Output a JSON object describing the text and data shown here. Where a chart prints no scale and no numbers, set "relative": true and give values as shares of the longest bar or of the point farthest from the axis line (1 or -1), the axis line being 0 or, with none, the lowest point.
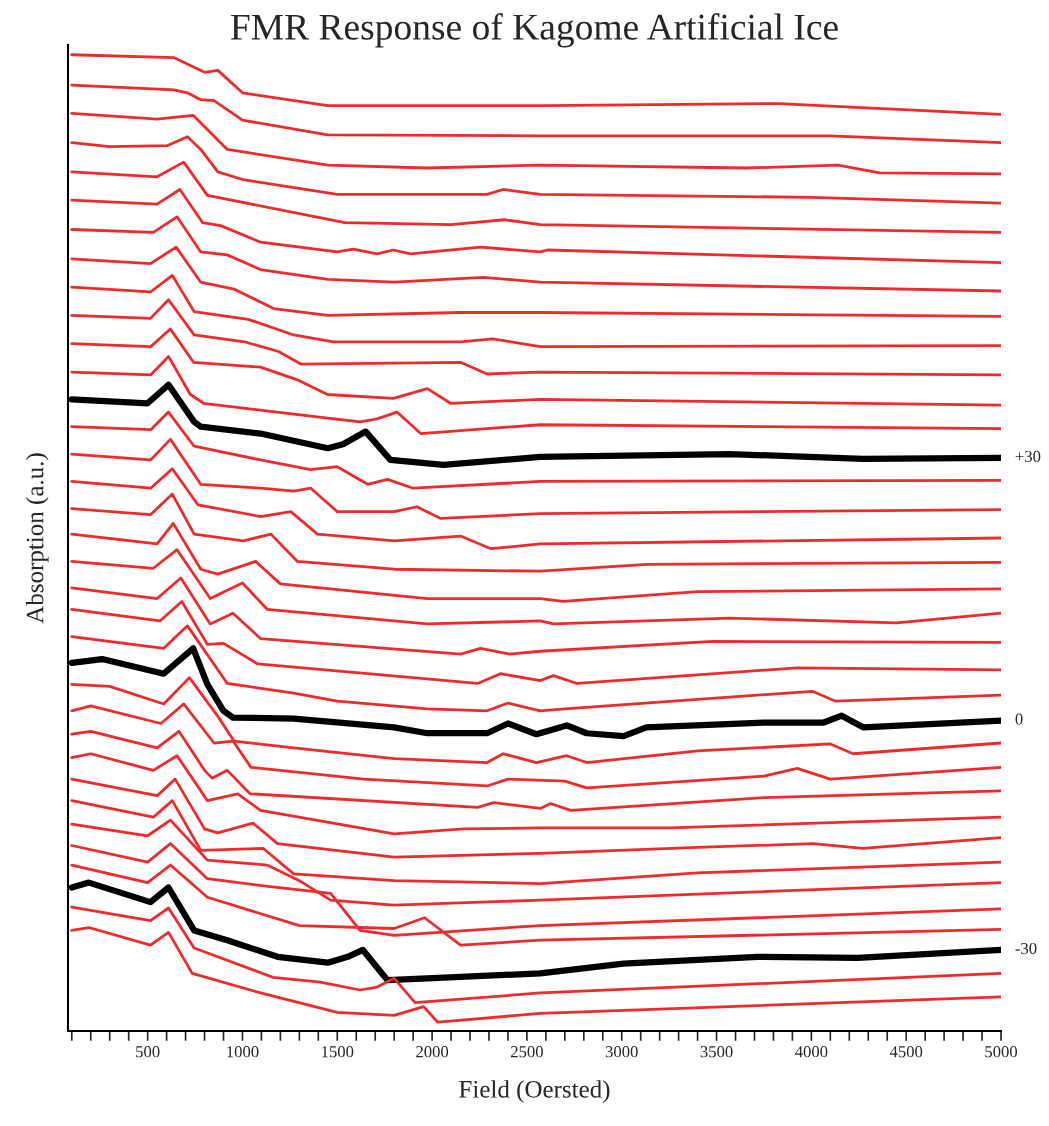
{
  "chart_data": {
    "type": "line",
    "title": "FMR Response of Kagome Artificial Ice",
    "xlabel": "Field (Oersted)",
    "ylabel": "Absorption (a.u.)",
    "relative": true,
    "xlim": [
      80,
      5000
    ],
    "xticks": [
      {
        "value": 100,
        "label": null
      },
      {
        "value": 200,
        "label": null
      },
      {
        "value": 300,
        "label": null
      },
      {
        "value": 400,
        "label": null
      },
      500,
      {
        "value": 600,
        "label": null
      },
      {
        "value": 700,
        "label": null
      },
      {
        "value": 800,
        "label": null
      },
      {
        "value": 900,
        "label": null
      },
      1000,
      {
        "value": 1100,
        "label": null
      },
      {
        "value": 1200,
        "label": null
      },
      {
        "value": 1300,
        "label": null
      },
      {
        "value": 1400,
        "label": null
      },
      1500,
      {
        "value": 1600,
        "label": null
      },
      {
        "value": 1700,
        "label": null
      },
      {
        "value": 1800,
        "label": null
      },
      {
        "value": 1900,
        "label": null
      },
      2000,
      {
        "value": 2100,
        "label": null
      },
      {
        "value": 2200,
        "label": null
      },
      {
        "value": 2300,
        "label": null
      },
      {
        "value": 2400,
        "label": null
      },
      2500,
      {
        "value": 2600,
        "label": null
      },
      {
        "value": 2700,
        "label": null
      },
      {
        "value": 2800,
        "label": null
      },
      {
        "value": 2900,
        "label": null
      },
      3000,
      {
        "value": 3100,
        "label": null
      },
      {
        "value": 3200,
        "label": null
      },
      {
        "value": 3300,
        "label": null
      },
      {
        "value": 3400,
        "label": null
      },
      3500,
      {
        "value": 3600,
        "label": null
      },
      {
        "value": 3700,
        "label": null
      },
      {
        "value": 3800,
        "label": null
      },
      {
        "value": 3900,
        "label": null
      },
      4000,
      {
        "value": 4100,
        "label": null
      },
      {
        "value": 4200,
        "label": null
      },
      {
        "value": 4300,
        "label": null
      },
      {
        "value": 4400,
        "label": null
      },
      4500,
      {
        "value": 4600,
        "label": null
      },
      {
        "value": 4700,
        "label": null
      },
      {
        "value": 4800,
        "label": null
      },
      {
        "value": 4900,
        "label": null
      },
      5000
    ],
    "grid": false,
    "legend": false,
    "marker": "none",
    "line_style": "solid",
    "series": [
      {
        "color": "#ee2a2a",
        "x": [
          100,
          640,
          800,
          870,
          1000,
          1450,
          2600,
          3830,
          5000
        ],
        "values": [
          1.0,
          0.997,
          0.982,
          0.984,
          0.961,
          0.948,
          0.948,
          0.95,
          0.939
        ]
      },
      {
        "color": "#ee2a2a",
        "x": [
          100,
          640,
          710,
          780,
          850,
          1000,
          1450,
          2570,
          4100,
          5000
        ],
        "values": [
          0.969,
          0.964,
          0.961,
          0.954,
          0.953,
          0.933,
          0.918,
          0.917,
          0.917,
          0.91
        ]
      },
      {
        "color": "#ee2a2a",
        "x": [
          100,
          550,
          740,
          920,
          1450,
          1975,
          2570,
          3660,
          4140,
          4360,
          5000
        ],
        "values": [
          0.94,
          0.934,
          0.938,
          0.903,
          0.887,
          0.884,
          0.887,
          0.884,
          0.887,
          0.879,
          0.878
        ]
      },
      {
        "color": "#ee2a2a",
        "x": [
          100,
          300,
          605,
          710,
          780,
          870,
          1005,
          1500,
          2290,
          2375,
          2570,
          4000,
          5000
        ],
        "values": [
          0.91,
          0.906,
          0.907,
          0.916,
          0.903,
          0.88,
          0.872,
          0.857,
          0.857,
          0.862,
          0.857,
          0.854,
          0.848
        ]
      },
      {
        "color": "#ee2a2a",
        "x": [
          100,
          550,
          690,
          815,
          1540,
          2100,
          2380,
          2570,
          5000
        ],
        "values": [
          0.88,
          0.875,
          0.89,
          0.856,
          0.828,
          0.826,
          0.831,
          0.826,
          0.818
        ]
      },
      {
        "color": "#ee2a2a",
        "x": [
          100,
          550,
          670,
          790,
          885,
          1095,
          1500,
          1585,
          1710,
          1795,
          1885,
          2255,
          2570,
          2610,
          5000
        ],
        "values": [
          0.851,
          0.847,
          0.862,
          0.828,
          0.825,
          0.808,
          0.798,
          0.801,
          0.796,
          0.8,
          0.796,
          0.803,
          0.798,
          0.8,
          0.787
        ]
      },
      {
        "color": "#ee2a2a",
        "x": [
          100,
          530,
          655,
          780,
          920,
          1095,
          1450,
          1800,
          2270,
          2570,
          5000
        ],
        "values": [
          0.821,
          0.818,
          0.834,
          0.798,
          0.795,
          0.78,
          0.77,
          0.767,
          0.772,
          0.767,
          0.758
        ]
      },
      {
        "color": "#ee2a2a",
        "x": [
          100,
          515,
          650,
          780,
          955,
          1165,
          1450,
          2150,
          2570,
          5000
        ],
        "values": [
          0.791,
          0.786,
          0.803,
          0.767,
          0.76,
          0.74,
          0.733,
          0.736,
          0.736,
          0.732
        ]
      },
      {
        "color": "#ee2a2a",
        "x": [
          100,
          515,
          630,
          745,
          1030,
          1270,
          1480,
          2150,
          2320,
          2570,
          5000
        ],
        "values": [
          0.762,
          0.757,
          0.774,
          0.737,
          0.729,
          0.713,
          0.706,
          0.706,
          0.709,
          0.701,
          0.702
        ]
      },
      {
        "color": "#ee2a2a",
        "x": [
          100,
          515,
          610,
          745,
          1010,
          1190,
          1310,
          2150,
          2290,
          2570,
          5000
        ],
        "values": [
          0.733,
          0.73,
          0.749,
          0.713,
          0.706,
          0.696,
          0.683,
          0.685,
          0.673,
          0.675,
          0.672
        ]
      },
      {
        "color": "#ee2a2a",
        "x": [
          100,
          516,
          620,
          742,
          1095,
          1290,
          1343,
          1448,
          1796,
          1975,
          2097,
          2571,
          5000
        ],
        "values": [
          0.704,
          0.701,
          0.719,
          0.685,
          0.68,
          0.667,
          0.662,
          0.652,
          0.648,
          0.658,
          0.643,
          0.647,
          0.641
        ]
      },
      {
        "color": "#ee2a2a",
        "x": [
          100,
          516,
          610,
          725,
          795,
          1270,
          1620,
          1710,
          1815,
          1940,
          2570,
          5000
        ],
        "values": [
          0.675,
          0.672,
          0.691,
          0.652,
          0.643,
          0.632,
          0.624,
          0.627,
          0.634,
          0.612,
          0.621,
          0.617
        ]
      },
      {
        "name": "+30",
        "color": "#000000",
        "x": [
          100,
          500,
          610,
          745,
          780,
          1095,
          1450,
          1530,
          1650,
          1780,
          2060,
          2570,
          3570,
          4270,
          5000
        ],
        "values": [
          0.647,
          0.643,
          0.662,
          0.624,
          0.619,
          0.612,
          0.597,
          0.601,
          0.614,
          0.585,
          0.58,
          0.588,
          0.591,
          0.586,
          0.587
        ]
      },
      {
        "color": "#ee2a2a",
        "x": [
          100,
          516,
          610,
          745,
          1095,
          1360,
          1500,
          1660,
          1765,
          1900,
          2570,
          5000
        ],
        "values": [
          0.619,
          0.616,
          0.634,
          0.599,
          0.585,
          0.575,
          0.578,
          0.56,
          0.565,
          0.556,
          0.563,
          0.564
        ]
      },
      {
        "color": "#ee2a2a",
        "x": [
          100,
          516,
          620,
          780,
          1095,
          1270,
          1360,
          1500,
          1800,
          1920,
          2045,
          2570,
          5000
        ],
        "values": [
          0.591,
          0.585,
          0.606,
          0.56,
          0.556,
          0.553,
          0.556,
          0.532,
          0.532,
          0.537,
          0.525,
          0.53,
          0.534
        ]
      },
      {
        "color": "#ee2a2a",
        "x": [
          100,
          516,
          630,
          765,
          1095,
          1255,
          1395,
          1800,
          2150,
          2310,
          2570,
          5000
        ],
        "values": [
          0.563,
          0.556,
          0.576,
          0.539,
          0.527,
          0.532,
          0.509,
          0.502,
          0.507,
          0.494,
          0.499,
          0.505
        ]
      },
      {
        "color": "#ee2a2a",
        "x": [
          100,
          516,
          630,
          745,
          1005,
          1150,
          1290,
          1800,
          2570,
          3135,
          5000
        ],
        "values": [
          0.535,
          0.529,
          0.55,
          0.509,
          0.502,
          0.509,
          0.481,
          0.473,
          0.471,
          0.478,
          0.48
        ]
      },
      {
        "color": "#ee2a2a",
        "x": [
          100,
          550,
          635,
          780,
          870,
          1070,
          1200,
          1975,
          2570,
          2690,
          3400,
          5000
        ],
        "values": [
          0.509,
          0.499,
          0.52,
          0.473,
          0.468,
          0.481,
          0.458,
          0.443,
          0.443,
          0.44,
          0.45,
          0.453
        ]
      },
      {
        "color": "#ee2a2a",
        "x": [
          100,
          530,
          655,
          830,
          1000,
          1130,
          1975,
          2570,
          2640,
          3570,
          4450,
          5000
        ],
        "values": [
          0.481,
          0.474,
          0.493,
          0.443,
          0.459,
          0.432,
          0.417,
          0.42,
          0.417,
          0.423,
          0.418,
          0.428
        ]
      },
      {
        "color": "#ee2a2a",
        "x": [
          100,
          550,
          675,
          830,
          950,
          1095,
          2150,
          2255,
          2410,
          2570,
          3480,
          5000
        ],
        "values": [
          0.454,
          0.443,
          0.464,
          0.417,
          0.428,
          0.402,
          0.386,
          0.392,
          0.386,
          0.389,
          0.399,
          0.398
        ]
      },
      {
        "color": "#ee2a2a",
        "x": [
          100,
          565,
          680,
          815,
          900,
          1080,
          2240,
          2360,
          2570,
          2640,
          2765,
          3925,
          5000
        ],
        "values": [
          0.432,
          0.42,
          0.44,
          0.396,
          0.397,
          0.376,
          0.356,
          0.366,
          0.359,
          0.364,
          0.356,
          0.372,
          0.37
        ]
      },
      {
        "color": "#ee2a2a",
        "x": [
          100,
          585,
          710,
          920,
          1270,
          1500,
          1975,
          2290,
          2400,
          2570,
          2700,
          4005,
          4125,
          5000
        ],
        "values": [
          0.404,
          0.392,
          0.415,
          0.356,
          0.346,
          0.338,
          0.33,
          0.328,
          0.336,
          0.328,
          0.33,
          0.348,
          0.338,
          0.344
        ]
      },
      {
        "name": "0",
        "color": "#000000",
        "x": [
          100,
          260,
          585,
          740,
          815,
          900,
          950,
          1270,
          1800,
          1975,
          2290,
          2400,
          2550,
          2710,
          2815,
          3010,
          3130,
          3750,
          4065,
          4160,
          4275,
          5000
        ],
        "values": [
          0.377,
          0.381,
          0.366,
          0.392,
          0.355,
          0.328,
          0.321,
          0.32,
          0.311,
          0.305,
          0.305,
          0.315,
          0.304,
          0.313,
          0.305,
          0.302,
          0.311,
          0.316,
          0.316,
          0.323,
          0.311,
          0.318
        ]
      },
      {
        "color": "#ee2a2a",
        "x": [
          100,
          300,
          585,
          720,
          875,
          955,
          1270,
          1800,
          2290,
          2375,
          2550,
          2710,
          2815,
          3400,
          4100,
          4220,
          5000
        ],
        "values": [
          0.355,
          0.353,
          0.335,
          0.362,
          0.321,
          0.297,
          0.29,
          0.279,
          0.275,
          0.284,
          0.275,
          0.282,
          0.275,
          0.287,
          0.294,
          0.284,
          0.295
        ]
      },
      {
        "color": "#ee2a2a",
        "x": [
          100,
          200,
          570,
          690,
          850,
          950,
          1045,
          1640,
          2290,
          2400,
          2700,
          2815,
          3750,
          3925,
          4100,
          5000
        ],
        "values": [
          0.328,
          0.333,
          0.315,
          0.335,
          0.295,
          0.297,
          0.27,
          0.258,
          0.251,
          0.258,
          0.256,
          0.249,
          0.261,
          0.269,
          0.258,
          0.27
        ]
      },
      {
        "color": "#ee2a2a",
        "x": [
          100,
          200,
          550,
          665,
          800,
          840,
          920,
          1040,
          2240,
          2325,
          2570,
          2625,
          2730,
          3750,
          5000
        ],
        "values": [
          0.304,
          0.307,
          0.29,
          0.307,
          0.267,
          0.259,
          0.267,
          0.243,
          0.229,
          0.234,
          0.228,
          0.233,
          0.226,
          0.239,
          0.246
        ]
      },
      {
        "color": "#ee2a2a",
        "x": [
          100,
          200,
          530,
          655,
          815,
          975,
          1095,
          1800,
          2165,
          2570,
          3255,
          5000
        ],
        "values": [
          0.28,
          0.284,
          0.267,
          0.282,
          0.236,
          0.243,
          0.226,
          0.202,
          0.207,
          0.208,
          0.208,
          0.219
        ]
      },
      {
        "color": "#ee2a2a",
        "x": [
          100,
          550,
          645,
          800,
          870,
          1055,
          1185,
          1800,
          2570,
          3400,
          4010,
          4270,
          5000
        ],
        "values": [
          0.258,
          0.241,
          0.258,
          0.207,
          0.203,
          0.213,
          0.192,
          0.178,
          0.182,
          0.188,
          0.192,
          0.187,
          0.198
        ]
      },
      {
        "color": "#ee2a2a",
        "x": [
          100,
          530,
          630,
          780,
          1110,
          1270,
          1800,
          2570,
          3400,
          5000
        ],
        "values": [
          0.236,
          0.219,
          0.236,
          0.185,
          0.187,
          0.161,
          0.154,
          0.151,
          0.162,
          0.173
        ]
      },
      {
        "color": "#ee2a2a",
        "x": [
          100,
          500,
          620,
          815,
          1130,
          1300,
          1465,
          1800,
          2570,
          5000
        ],
        "values": [
          0.212,
          0.2,
          0.216,
          0.175,
          0.17,
          0.154,
          0.134,
          0.129,
          0.134,
          0.152
        ]
      },
      {
        "color": "#ee2a2a",
        "x": [
          100,
          500,
          620,
          815,
          1100,
          1465,
          1620,
          1800,
          2570,
          5000
        ],
        "values": [
          0.19,
          0.173,
          0.192,
          0.156,
          0.149,
          0.141,
          0.103,
          0.098,
          0.108,
          0.125
        ]
      },
      {
        "color": "#ee2a2a",
        "x": [
          100,
          500,
          620,
          815,
          1300,
          1800,
          1960,
          2150,
          2570,
          5000
        ],
        "values": [
          0.17,
          0.152,
          0.17,
          0.137,
          0.108,
          0.105,
          0.116,
          0.088,
          0.093,
          0.104
        ]
      },
      {
        "name": "-30",
        "color": "#000000",
        "x": [
          100,
          190,
          515,
          610,
          745,
          920,
          1185,
          1450,
          1555,
          1635,
          1765,
          1975,
          2570,
          3010,
          3715,
          4245,
          5000
        ],
        "values": [
          0.147,
          0.152,
          0.132,
          0.147,
          0.103,
          0.093,
          0.076,
          0.07,
          0.076,
          0.083,
          0.052,
          0.054,
          0.059,
          0.069,
          0.076,
          0.075,
          0.083
        ]
      },
      {
        "color": "#ee2a2a",
        "x": [
          100,
          515,
          610,
          745,
          1160,
          1410,
          1620,
          1710,
          1800,
          1910,
          2570,
          5000
        ],
        "values": [
          0.127,
          0.113,
          0.126,
          0.085,
          0.055,
          0.05,
          0.042,
          0.045,
          0.054,
          0.029,
          0.039,
          0.059
        ]
      },
      {
        "color": "#ee2a2a",
        "x": [
          100,
          190,
          515,
          610,
          735,
          1095,
          1500,
          1800,
          1955,
          2030,
          2570,
          5000
        ],
        "values": [
          0.103,
          0.106,
          0.088,
          0.101,
          0.059,
          0.039,
          0.019,
          0.016,
          0.025,
          0.009,
          0.018,
          0.035
        ]
      }
    ]
  }
}
